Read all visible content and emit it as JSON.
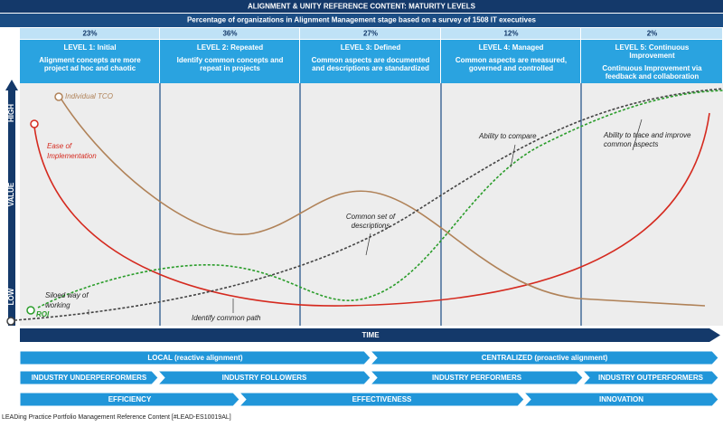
{
  "header": {
    "title": "ALIGNMENT & UNITY REFERENCE CONTENT: MATURITY LEVELS",
    "subtitle": "Percentage of organizations in Alignment Management stage based on a survey of 1508 IT executives"
  },
  "levels": [
    {
      "percent": "23%",
      "label": [
        "LEVEL 1: Initial"
      ],
      "description": [
        "Alignment concepts are more",
        "project ad hoc and chaotic"
      ]
    },
    {
      "percent": "36%",
      "label": [
        "LEVEL 2: Repeated"
      ],
      "description": [
        "Identify common concepts and",
        "repeat in projects"
      ]
    },
    {
      "percent": "27%",
      "label": [
        "LEVEL 3: Defined"
      ],
      "description": [
        "Common aspects are documented",
        "and descriptions are standardized"
      ]
    },
    {
      "percent": "12%",
      "label": [
        "LEVEL 4: Managed"
      ],
      "description": [
        "Common aspects are measured,",
        "governed and controlled"
      ]
    },
    {
      "percent": "2%",
      "label": [
        "LEVEL 5: Continuous",
        "Improvement"
      ],
      "description": [
        "Continuous Improvement via",
        "feedback and collaboration"
      ]
    }
  ],
  "chart": {
    "y_axis": {
      "label": "VALUE",
      "high": "HIGH",
      "low": "LOW"
    },
    "x_axis_label": "TIME",
    "curves": {
      "tco": "Individual TCO",
      "ease": [
        "Ease of",
        "Implementation"
      ],
      "compare": "Ability to compare",
      "trace": [
        "Ability to trace and improve",
        "common aspects"
      ],
      "descriptions": [
        "Common set of",
        "descriptions"
      ],
      "siloed": [
        "Siloed way of",
        "working"
      ],
      "path": "Identify common path",
      "roi": "ROI"
    }
  },
  "bands": [
    [
      "LOCAL (reactive alignment)",
      "CENTRALIZED (proactive alignment)"
    ],
    [
      "INDUSTRY UNDERPERFORMERS",
      "INDUSTRY FOLLOWERS",
      "INDUSTRY PERFORMERS",
      "INDUSTRY OUTPERFORMERS"
    ],
    [
      "EFFICIENCY",
      "EFFECTIVENESS",
      "INNOVATION"
    ]
  ],
  "footer": "LEADing Practice Portfolio Management Reference Content [#LEAD-ES10019AL]"
}
